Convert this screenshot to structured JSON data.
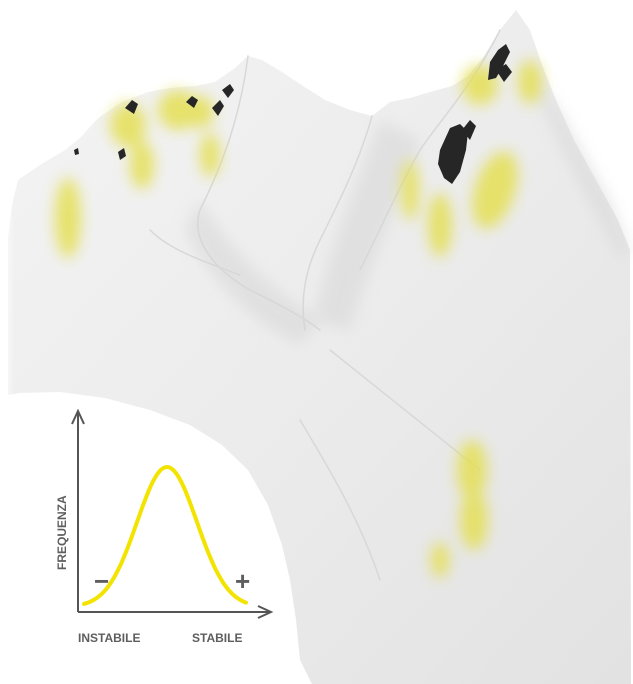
{
  "chart_data": {
    "type": "line",
    "ylabel": "FREQUENZA",
    "x_start_label": "INSTABILE",
    "x_end_label": "STABILE",
    "minus_sign": "−",
    "plus_sign": "+",
    "curve_shape": "bell",
    "grid": false
  },
  "colors": {
    "curve": "#f2e400",
    "axis": "#555555",
    "label": "#5e5e5e",
    "snow": "#efefef",
    "rock": "#262626",
    "lichen_patch": "#e4df52"
  }
}
